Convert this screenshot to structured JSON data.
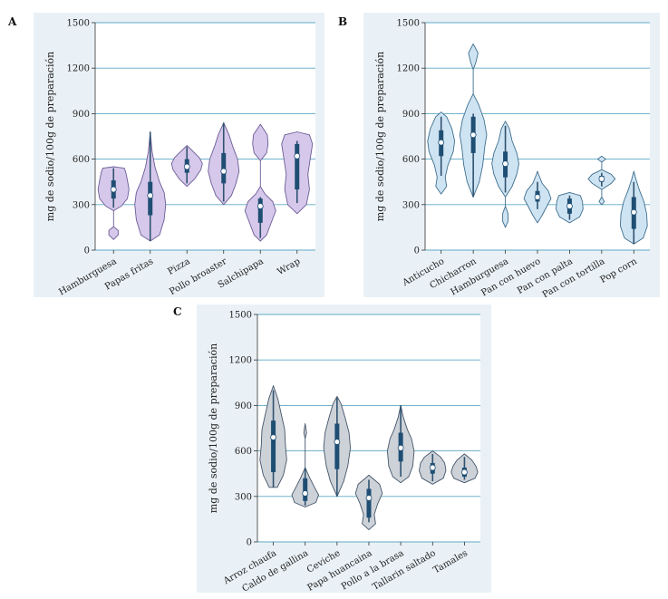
{
  "chart_data": [
    {
      "type": "violin",
      "panel_label": "A",
      "ylabel": "mg de sodio/100g de preparación",
      "ylim": [
        0,
        1500
      ],
      "yticks": [
        0,
        300,
        600,
        900,
        1200,
        1500
      ],
      "grid": true,
      "fill_color": "#d6c8ea",
      "stroke_color": "#6a5c96",
      "categories": [
        "Hamburguesa",
        "Papas fritas",
        "Pizza",
        "Pollo broaster",
        "Salchipapa",
        "Wrap"
      ],
      "violins": [
        {
          "median": 400,
          "q1": 340,
          "q3": 460,
          "whisker_low": 280,
          "whisker_high": 540,
          "min": 70,
          "max": 550,
          "profile": [
            [
              70,
              0
            ],
            [
              100,
              0.3
            ],
            [
              130,
              0.3
            ],
            [
              155,
              0
            ],
            [
              260,
              0
            ],
            [
              290,
              0.5
            ],
            [
              340,
              0.9
            ],
            [
              400,
              1
            ],
            [
              460,
              0.9
            ],
            [
              510,
              0.8
            ],
            [
              540,
              0.7
            ],
            [
              550,
              0
            ]
          ]
        },
        {
          "median": 360,
          "q1": 230,
          "q3": 450,
          "whisker_low": 60,
          "whisker_high": 780,
          "min": 60,
          "max": 780,
          "profile": [
            [
              60,
              0
            ],
            [
              100,
              0.6
            ],
            [
              200,
              0.9
            ],
            [
              300,
              1
            ],
            [
              380,
              0.9
            ],
            [
              450,
              0.6
            ],
            [
              550,
              0.3
            ],
            [
              650,
              0.12
            ],
            [
              780,
              0
            ]
          ]
        },
        {
          "median": 550,
          "q1": 510,
          "q3": 600,
          "whisker_low": 440,
          "whisker_high": 680,
          "min": 420,
          "max": 690,
          "profile": [
            [
              420,
              0
            ],
            [
              470,
              0.5
            ],
            [
              530,
              0.9
            ],
            [
              570,
              1
            ],
            [
              610,
              0.8
            ],
            [
              650,
              0.4
            ],
            [
              690,
              0
            ]
          ]
        },
        {
          "median": 520,
          "q1": 440,
          "q3": 640,
          "whisker_low": 320,
          "whisker_high": 840,
          "min": 300,
          "max": 840,
          "profile": [
            [
              300,
              0
            ],
            [
              360,
              0.5
            ],
            [
              440,
              0.8
            ],
            [
              520,
              1
            ],
            [
              600,
              0.9
            ],
            [
              680,
              0.6
            ],
            [
              760,
              0.35
            ],
            [
              840,
              0
            ]
          ]
        },
        {
          "median": 290,
          "q1": 180,
          "q3": 340,
          "whisker_low": 80,
          "whisker_high": 350,
          "min": 60,
          "max": 830,
          "profile": [
            [
              60,
              0
            ],
            [
              100,
              0.4
            ],
            [
              180,
              0.7
            ],
            [
              260,
              1
            ],
            [
              320,
              0.8
            ],
            [
              370,
              0.3
            ],
            [
              420,
              0
            ],
            [
              590,
              0
            ],
            [
              640,
              0.4
            ],
            [
              700,
              0.5
            ],
            [
              760,
              0.45
            ],
            [
              830,
              0
            ]
          ]
        },
        {
          "median": 620,
          "q1": 400,
          "q3": 700,
          "whisker_low": 310,
          "whisker_high": 720,
          "min": 240,
          "max": 780,
          "profile": [
            [
              240,
              0
            ],
            [
              300,
              0.6
            ],
            [
              400,
              0.8
            ],
            [
              500,
              0.7
            ],
            [
              600,
              0.85
            ],
            [
              700,
              1
            ],
            [
              760,
              0.8
            ],
            [
              780,
              0
            ]
          ]
        }
      ]
    },
    {
      "type": "violin",
      "panel_label": "B",
      "ylabel": "mg de sodio/100g de preparación",
      "ylim": [
        0,
        1500
      ],
      "yticks": [
        0,
        300,
        600,
        900,
        1200,
        1500
      ],
      "grid": true,
      "fill_color": "#cfe4f3",
      "stroke_color": "#3d6e8e",
      "categories": [
        "Anticucho",
        "Chicharron",
        "Hamburguesa",
        "Pan con huevo",
        "Pan con palta",
        "Pan con tortilla",
        "Pop corn"
      ],
      "violins": [
        {
          "median": 710,
          "q1": 620,
          "q3": 790,
          "whisker_low": 490,
          "whisker_high": 880,
          "min": 370,
          "max": 910,
          "profile": [
            [
              370,
              0
            ],
            [
              420,
              0.4
            ],
            [
              480,
              0.3
            ],
            [
              560,
              0.5
            ],
            [
              650,
              0.9
            ],
            [
              720,
              1
            ],
            [
              800,
              0.8
            ],
            [
              880,
              0.4
            ],
            [
              910,
              0
            ]
          ]
        },
        {
          "median": 760,
          "q1": 640,
          "q3": 880,
          "whisker_low": 350,
          "whisker_high": 900,
          "min": 350,
          "max": 1360,
          "profile": [
            [
              350,
              0
            ],
            [
              450,
              0.45
            ],
            [
              560,
              0.7
            ],
            [
              680,
              0.85
            ],
            [
              760,
              1
            ],
            [
              860,
              0.8
            ],
            [
              960,
              0.4
            ],
            [
              1030,
              0
            ],
            [
              1190,
              0
            ],
            [
              1240,
              0.2
            ],
            [
              1300,
              0.35
            ],
            [
              1360,
              0
            ]
          ]
        },
        {
          "median": 570,
          "q1": 480,
          "q3": 650,
          "whisker_low": 380,
          "whisker_high": 820,
          "min": 150,
          "max": 850,
          "profile": [
            [
              150,
              0
            ],
            [
              190,
              0.2
            ],
            [
              240,
              0.2
            ],
            [
              290,
              0
            ],
            [
              350,
              0
            ],
            [
              420,
              0.5
            ],
            [
              500,
              0.85
            ],
            [
              570,
              1
            ],
            [
              640,
              0.85
            ],
            [
              720,
              0.5
            ],
            [
              800,
              0.3
            ],
            [
              850,
              0
            ]
          ]
        },
        {
          "median": 350,
          "q1": 320,
          "q3": 390,
          "whisker_low": 270,
          "whisker_high": 450,
          "min": 180,
          "max": 520,
          "profile": [
            [
              180,
              0
            ],
            [
              230,
              0.35
            ],
            [
              290,
              0.7
            ],
            [
              340,
              1
            ],
            [
              390,
              0.8
            ],
            [
              440,
              0.35
            ],
            [
              490,
              0.12
            ],
            [
              520,
              0
            ]
          ]
        },
        {
          "median": 290,
          "q1": 240,
          "q3": 340,
          "whisker_low": 200,
          "whisker_high": 360,
          "min": 180,
          "max": 380,
          "profile": [
            [
              180,
              0
            ],
            [
              220,
              0.75
            ],
            [
              270,
              1
            ],
            [
              320,
              0.95
            ],
            [
              360,
              0.8
            ],
            [
              380,
              0
            ]
          ]
        },
        {
          "median": 470,
          "q1": 450,
          "q3": 490,
          "whisker_low": 420,
          "whisker_high": 510,
          "min": 300,
          "max": 620,
          "profile": [
            [
              300,
              0
            ],
            [
              320,
              0.2
            ],
            [
              350,
              0
            ],
            [
              400,
              0
            ],
            [
              440,
              0.7
            ],
            [
              470,
              1
            ],
            [
              500,
              0.7
            ],
            [
              530,
              0
            ],
            [
              580,
              0
            ],
            [
              600,
              0.3
            ],
            [
              620,
              0
            ]
          ]
        },
        {
          "median": 250,
          "q1": 140,
          "q3": 350,
          "whisker_low": 40,
          "whisker_high": 450,
          "min": 40,
          "max": 520,
          "profile": [
            [
              40,
              0
            ],
            [
              80,
              0.7
            ],
            [
              160,
              1
            ],
            [
              240,
              0.95
            ],
            [
              320,
              0.75
            ],
            [
              400,
              0.4
            ],
            [
              470,
              0.15
            ],
            [
              520,
              0
            ]
          ]
        }
      ]
    },
    {
      "type": "violin",
      "panel_label": "C",
      "ylabel": "mg de sodio/100g de preparación",
      "ylim": [
        0,
        1500
      ],
      "yticks": [
        0,
        300,
        600,
        900,
        1200,
        1500
      ],
      "grid": true,
      "fill_color": "#cdd2d8",
      "stroke_color": "#44556a",
      "categories": [
        "Arroz chaufa",
        "Caldo de gallina",
        "Ceviche",
        "Papa huancaina",
        "Pollo a la brasa",
        "Tallarin saltado",
        "Tamales"
      ],
      "violins": [
        {
          "median": 690,
          "q1": 460,
          "q3": 800,
          "whisker_low": 360,
          "whisker_high": 1000,
          "min": 360,
          "max": 1030,
          "profile": [
            [
              360,
              0.3
            ],
            [
              440,
              0.75
            ],
            [
              540,
              1
            ],
            [
              640,
              0.9
            ],
            [
              740,
              0.85
            ],
            [
              840,
              0.6
            ],
            [
              940,
              0.35
            ],
            [
              1030,
              0
            ]
          ]
        },
        {
          "median": 320,
          "q1": 270,
          "q3": 420,
          "whisker_low": 240,
          "whisker_high": 490,
          "min": 230,
          "max": 780,
          "profile": [
            [
              230,
              0
            ],
            [
              260,
              0.8
            ],
            [
              310,
              1
            ],
            [
              360,
              0.7
            ],
            [
              420,
              0.35
            ],
            [
              490,
              0
            ],
            [
              680,
              0
            ],
            [
              720,
              0.1
            ],
            [
              780,
              0
            ]
          ]
        },
        {
          "median": 660,
          "q1": 480,
          "q3": 780,
          "whisker_low": 300,
          "whisker_high": 950,
          "min": 300,
          "max": 960,
          "profile": [
            [
              300,
              0
            ],
            [
              400,
              0.5
            ],
            [
              500,
              0.8
            ],
            [
              620,
              1
            ],
            [
              720,
              0.9
            ],
            [
              820,
              0.6
            ],
            [
              910,
              0.3
            ],
            [
              960,
              0
            ]
          ]
        },
        {
          "median": 290,
          "q1": 160,
          "q3": 350,
          "whisker_low": 130,
          "whisker_high": 410,
          "min": 80,
          "max": 440,
          "profile": [
            [
              80,
              0
            ],
            [
              120,
              0.5
            ],
            [
              180,
              0.4
            ],
            [
              250,
              0.65
            ],
            [
              320,
              1
            ],
            [
              380,
              0.8
            ],
            [
              440,
              0
            ]
          ]
        },
        {
          "median": 620,
          "q1": 530,
          "q3": 720,
          "whisker_low": 430,
          "whisker_high": 900,
          "min": 390,
          "max": 900,
          "profile": [
            [
              390,
              0
            ],
            [
              430,
              0.6
            ],
            [
              500,
              0.9
            ],
            [
              600,
              1
            ],
            [
              680,
              0.8
            ],
            [
              740,
              0.5
            ],
            [
              820,
              0.2
            ],
            [
              900,
              0
            ]
          ]
        },
        {
          "median": 490,
          "q1": 450,
          "q3": 520,
          "whisker_low": 400,
          "whisker_high": 580,
          "min": 380,
          "max": 600,
          "profile": [
            [
              380,
              0
            ],
            [
              420,
              0.8
            ],
            [
              470,
              1
            ],
            [
              520,
              0.9
            ],
            [
              560,
              0.6
            ],
            [
              600,
              0
            ]
          ]
        },
        {
          "median": 460,
          "q1": 430,
          "q3": 490,
          "whisker_low": 410,
          "whisker_high": 560,
          "min": 390,
          "max": 580,
          "profile": [
            [
              390,
              0
            ],
            [
              420,
              0.8
            ],
            [
              460,
              1
            ],
            [
              500,
              0.85
            ],
            [
              540,
              0.55
            ],
            [
              580,
              0
            ]
          ]
        }
      ]
    }
  ]
}
